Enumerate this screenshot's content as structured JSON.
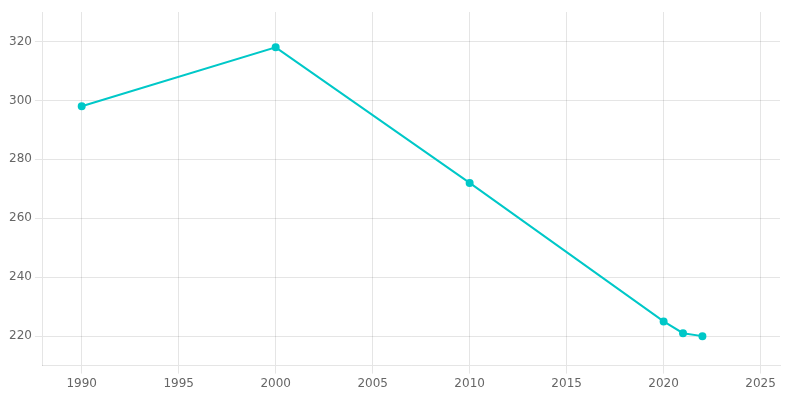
{
  "chart_data": {
    "type": "line",
    "x": [
      1990,
      2000,
      2010,
      2020,
      2021,
      2022
    ],
    "values": [
      298,
      318,
      272,
      225,
      221,
      220
    ],
    "color": "#00c8c8",
    "marker": "circle",
    "xlim": [
      1988,
      2026
    ],
    "ylim": [
      210,
      330
    ],
    "xticks": [
      1990,
      1995,
      2000,
      2005,
      2010,
      2015,
      2020,
      2025
    ],
    "yticks": [
      220,
      240,
      260,
      280,
      300,
      320
    ],
    "grid": true
  }
}
